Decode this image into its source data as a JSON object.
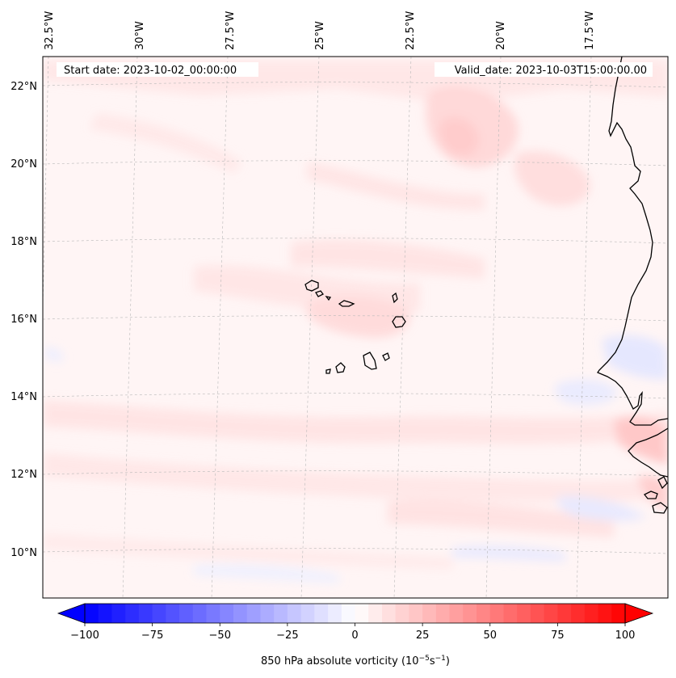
{
  "map": {
    "start_date_text": "Start date: 2023-10-02_00:00:00",
    "valid_date_text": "Valid_date: 2023-10-03T15:00:00.00",
    "lon_ticks": [
      {
        "value": -32.5,
        "label": "32.5°W"
      },
      {
        "value": -30.0,
        "label": "30°W"
      },
      {
        "value": -27.5,
        "label": "27.5°W"
      },
      {
        "value": -25.0,
        "label": "25°W"
      },
      {
        "value": -22.5,
        "label": "22.5°W"
      },
      {
        "value": -20.0,
        "label": "20°W"
      },
      {
        "value": -17.5,
        "label": "17.5°W"
      }
    ],
    "lat_ticks": [
      {
        "value": 22,
        "label": "22°N"
      },
      {
        "value": 20,
        "label": "20°N"
      },
      {
        "value": 18,
        "label": "18°N"
      },
      {
        "value": 16,
        "label": "16°N"
      },
      {
        "value": 14,
        "label": "14°N"
      },
      {
        "value": 12,
        "label": "12°N"
      },
      {
        "value": 10,
        "label": "10°N"
      }
    ]
  },
  "colorbar": {
    "min": -100,
    "max": 100,
    "ticks": [
      {
        "value": -100,
        "label": "−100"
      },
      {
        "value": -75,
        "label": "−75"
      },
      {
        "value": -50,
        "label": "−50"
      },
      {
        "value": -25,
        "label": "−25"
      },
      {
        "value": 0,
        "label": "0"
      },
      {
        "value": 25,
        "label": "25"
      },
      {
        "value": 50,
        "label": "50"
      },
      {
        "value": 75,
        "label": "75"
      },
      {
        "value": 100,
        "label": "100"
      }
    ],
    "label_main": "850 hPa absolute vorticity (10",
    "label_exp1": "−5",
    "label_mid": "s",
    "label_exp2": "−1",
    "label_close": ")",
    "colors": {
      "negative": "#0000ff",
      "neutral": "#ffffff",
      "positive": "#ff0000"
    }
  }
}
